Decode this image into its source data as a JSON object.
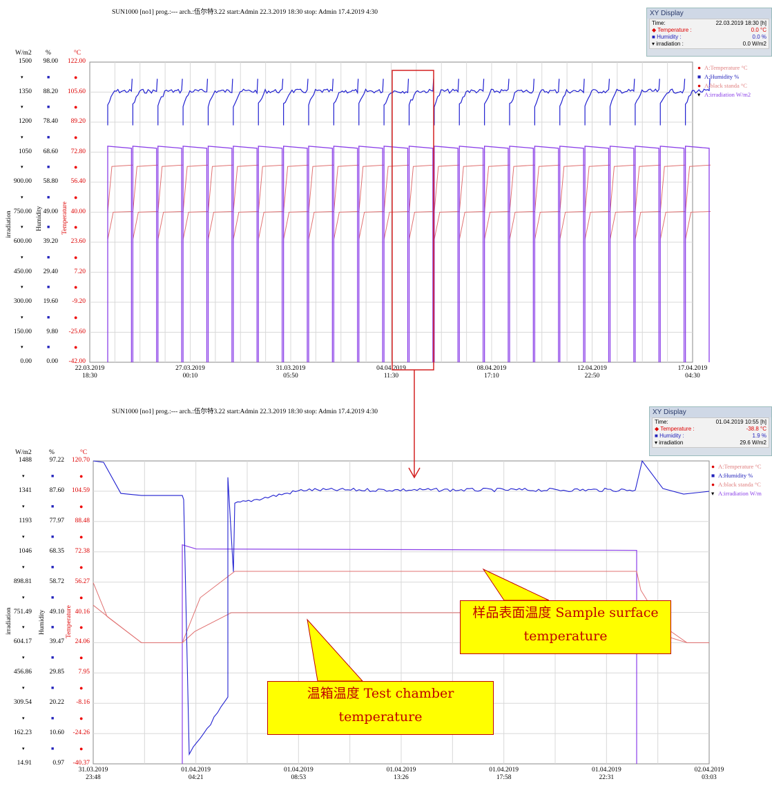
{
  "colors": {
    "humidity": "#1f1fd0",
    "temperature": "#e07070",
    "irradiation": "#8a3ee8",
    "callout_fill": "#ffff00",
    "callout_text": "#c00000",
    "highlight_box": "#d42020"
  },
  "header_top": "SUN1000 [no1] prog.:--- arch.:伍尔特3.22 start:Admin 22.3.2019  18:30 stop: Admin 17.4.2019  4:30",
  "header_bottom": "SUN1000 [no1] prog.:--- arch.:伍尔特3.22 start:Admin 22.3.2019  18:30 stop: Admin 17.4.2019  4:30",
  "units": {
    "irradiation": "W/m2",
    "humidity": "%",
    "temperature": "°C"
  },
  "axis_names": {
    "irradiation": "irradiation",
    "humidity": "Humidity",
    "temperature": "Temperature"
  },
  "xy_top": {
    "title": "XY Display",
    "time_label": "Time:",
    "time_value": "22.03.2019 18:30 [h]",
    "rows": [
      {
        "label": "Temperature",
        "sep": ":",
        "value": "0.0 °C"
      },
      {
        "label": "Humidity",
        "sep": ":",
        "value": "0.0 %"
      },
      {
        "label": "irradiation",
        "sep": ":",
        "value": "0.0 W/m2"
      }
    ]
  },
  "xy_bottom": {
    "title": "XY Display",
    "time_label": "Time:",
    "time_value": "01.04.2019 10:55 [h]",
    "rows": [
      {
        "label": "Temperature",
        "sep": ":",
        "value": "-38.8 °C"
      },
      {
        "label": "Humidity",
        "sep": ":",
        "value": "1.9 %"
      },
      {
        "label": "irradiation",
        "sep": "",
        "value": "29.6 W/m2"
      }
    ]
  },
  "legend_top": [
    "A:Temperature  °C",
    "A:Humidity    %",
    "A:black standa  °C",
    "A:irradiation   W/m2"
  ],
  "legend_bottom": [
    "A:Temperature  °C",
    "A:Humidity    %",
    "A:black standa  °C",
    "A:irradiation   W/m"
  ],
  "callouts": {
    "sample": "样品表面温度 Sample surface temperature",
    "chamber": "温箱温度 Test chamber temperature"
  },
  "chart_data": [
    {
      "type": "line",
      "title": "SUN1000 [no1] prog.:--- arch.:伍尔特3.22 start:Admin 22.3.2019  18:30 stop: Admin 17.4.2019  4:30",
      "y_ticks": {
        "irradiation": [
          "1500",
          "1350",
          "1200",
          "1050",
          "900.00",
          "750.00",
          "600.00",
          "450.00",
          "300.00",
          "150.00",
          "0.00"
        ],
        "humidity": [
          "98.00",
          "88.20",
          "78.40",
          "68.60",
          "58.80",
          "49.00",
          "39.20",
          "29.40",
          "19.60",
          "9.80",
          "0.00"
        ],
        "temperature": [
          "122.00",
          "105.60",
          "89.20",
          "72.80",
          "56.40",
          "40.00",
          "23.60",
          "7.20",
          "-9.20",
          "-25.60",
          "-42.00"
        ]
      },
      "x_ticks": [
        "22.03.2019\n18:30",
        "27.03.2019\n00:10",
        "31.03.2019\n05:50",
        "04.04.2019\n11:30",
        "08.04.2019\n17:10",
        "12.04.2019\n22:50",
        "17.04.2019\n04:30"
      ],
      "ylim_temperature": [
        -42,
        122
      ],
      "cycles": 24,
      "series": [
        {
          "name": "A:Temperature",
          "level_c": 40.0,
          "dip_c": 25.0
        },
        {
          "name": "A:Humidity",
          "level_pct": 88.5,
          "dip_pct": 83.0
        },
        {
          "name": "A:black standa",
          "level_c": 65.0,
          "dip_c": 40.0
        },
        {
          "name": "A:irradiation",
          "level_w": 1080,
          "off_w": 0
        }
      ]
    },
    {
      "type": "line",
      "title": "SUN1000 [no1] prog.:--- arch.:伍尔特3.22 start:Admin 22.3.2019  18:30 stop: Admin 17.4.2019  4:30",
      "y_ticks": {
        "irradiation": [
          "1488",
          "1341",
          "1193",
          "1046",
          "898.81",
          "751.49",
          "604.17",
          "456.86",
          "309.54",
          "162.23",
          "14.91"
        ],
        "humidity": [
          "97.22",
          "87.60",
          "77.97",
          "68.35",
          "58.72",
          "49.10",
          "39.47",
          "29.85",
          "20.22",
          "10.60",
          "0.97"
        ],
        "temperature": [
          "120.70",
          "104.59",
          "88.48",
          "72.38",
          "56.27",
          "40.16",
          "24.06",
          "7.95",
          "-8.16",
          "-24.26",
          "-40.37"
        ]
      },
      "x_ticks": [
        "31.03.2019\n23:48",
        "01.04.2019\n04:21",
        "01.04.2019\n08:53",
        "01.04.2019\n13:26",
        "01.04.2019\n17:58",
        "01.04.2019\n22:31",
        "02.04.2019\n03:03"
      ],
      "ylim_temperature": [
        -40.37,
        120.7
      ],
      "series": [
        {
          "name": "A:Temperature",
          "level_c": 40.0
        },
        {
          "name": "A:Humidity",
          "level_pct": 88.0
        },
        {
          "name": "A:black standa",
          "level_c": 62.0
        },
        {
          "name": "A:irradiation",
          "level_w": 1060
        }
      ]
    }
  ]
}
